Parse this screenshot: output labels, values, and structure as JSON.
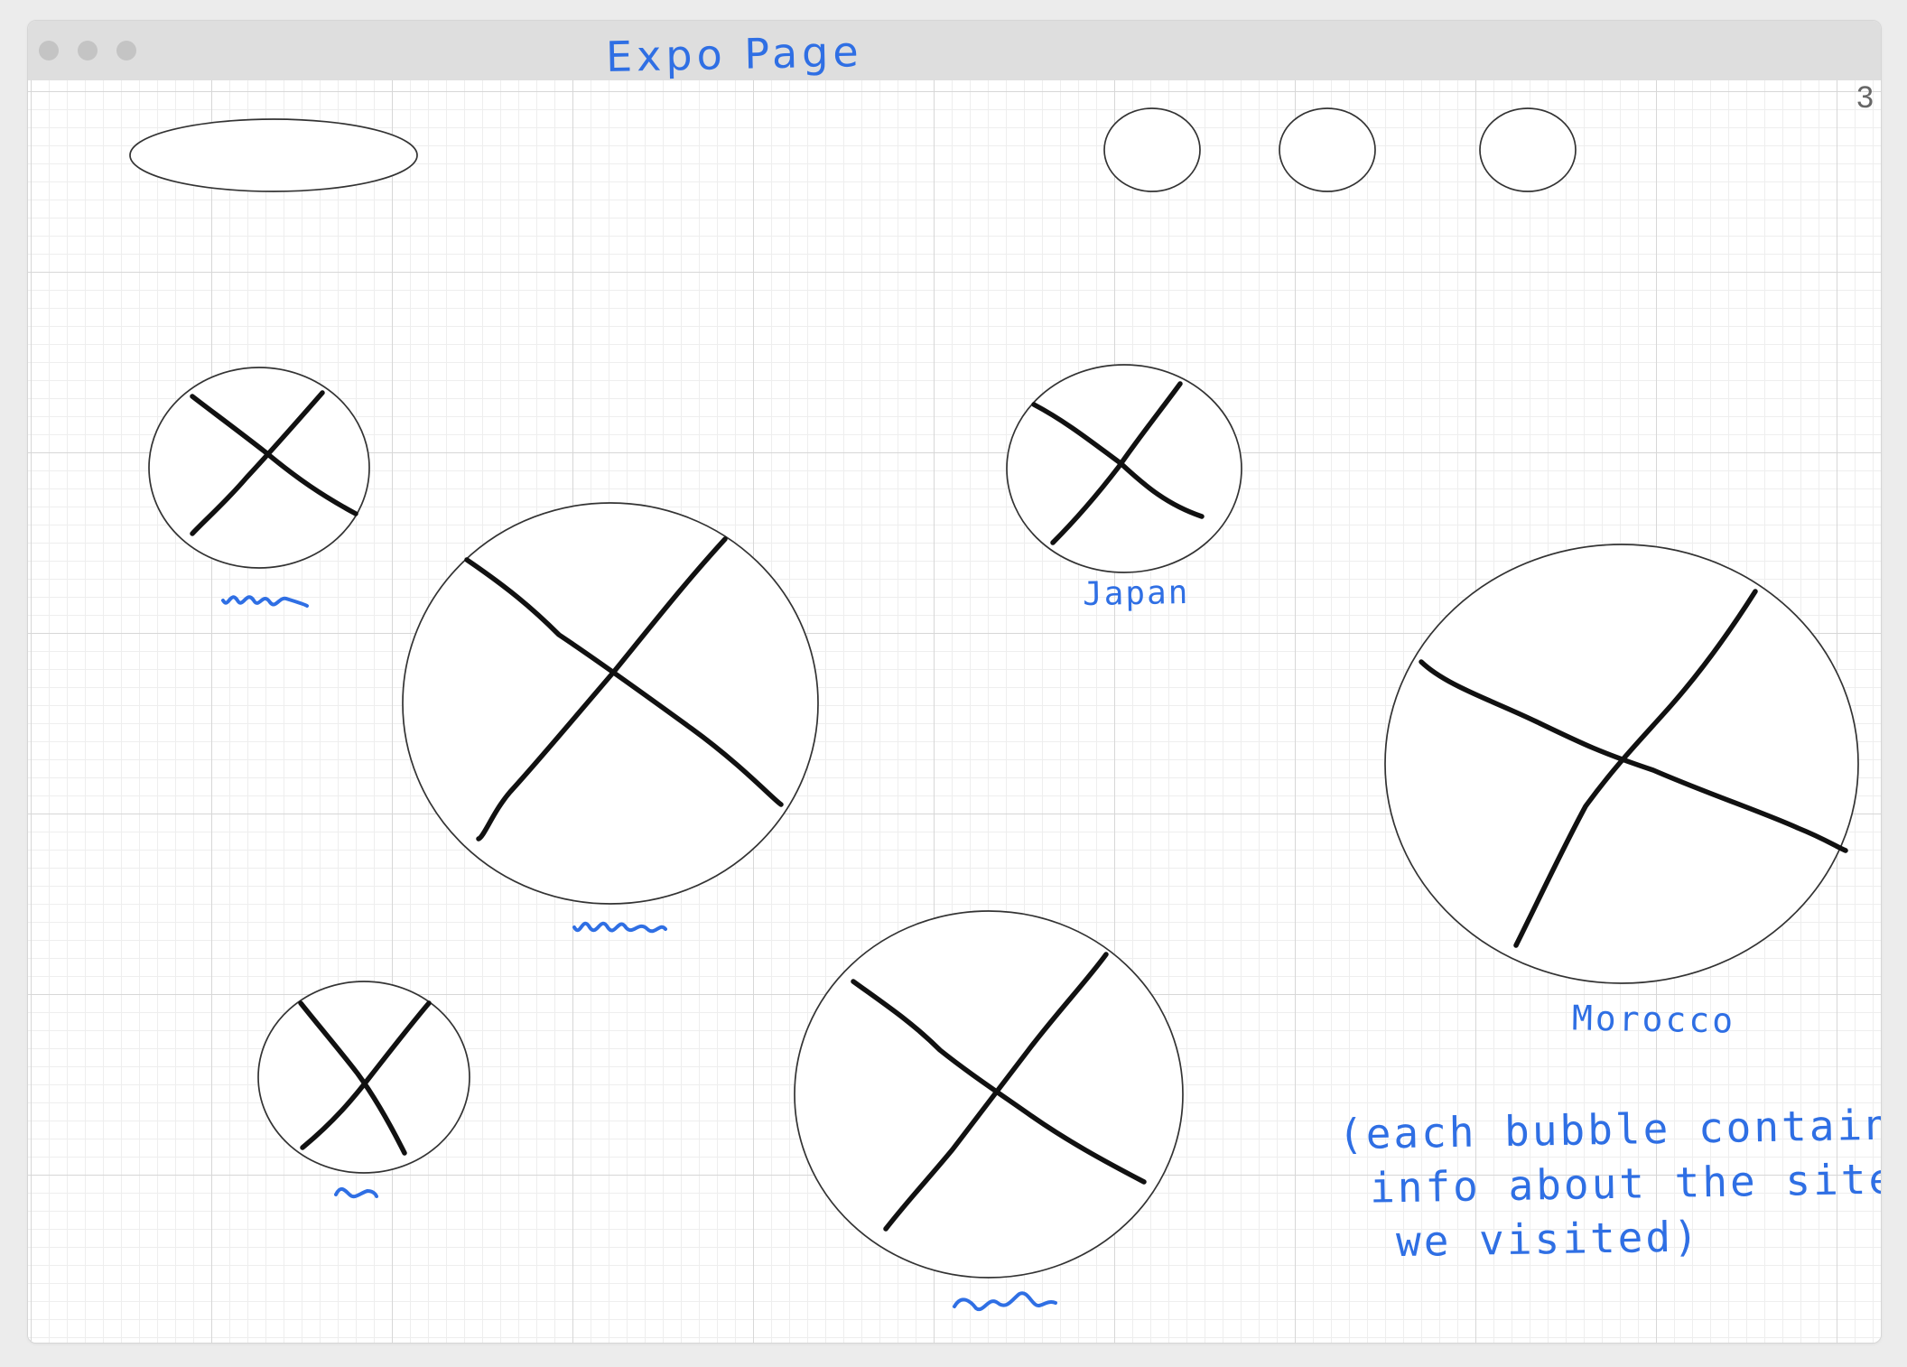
{
  "window": {
    "title": "Expo Page",
    "page_number": "3",
    "controls": [
      "close",
      "minimize",
      "maximize"
    ]
  },
  "header": {
    "top_placeholders": [
      "search-pill",
      "nav-circle",
      "nav-circle",
      "nav-circle"
    ]
  },
  "bubbles": [
    {
      "label": "Japan"
    },
    {
      "label": "Morocco"
    }
  ],
  "note": {
    "lines": [
      "(each bubble contains",
      "info about the sites",
      "we visited)"
    ]
  },
  "colors": {
    "ink": "#2f6fe4",
    "sketch": "#111111",
    "grid": "#d7d7d7",
    "titlebar": "#dedede"
  }
}
